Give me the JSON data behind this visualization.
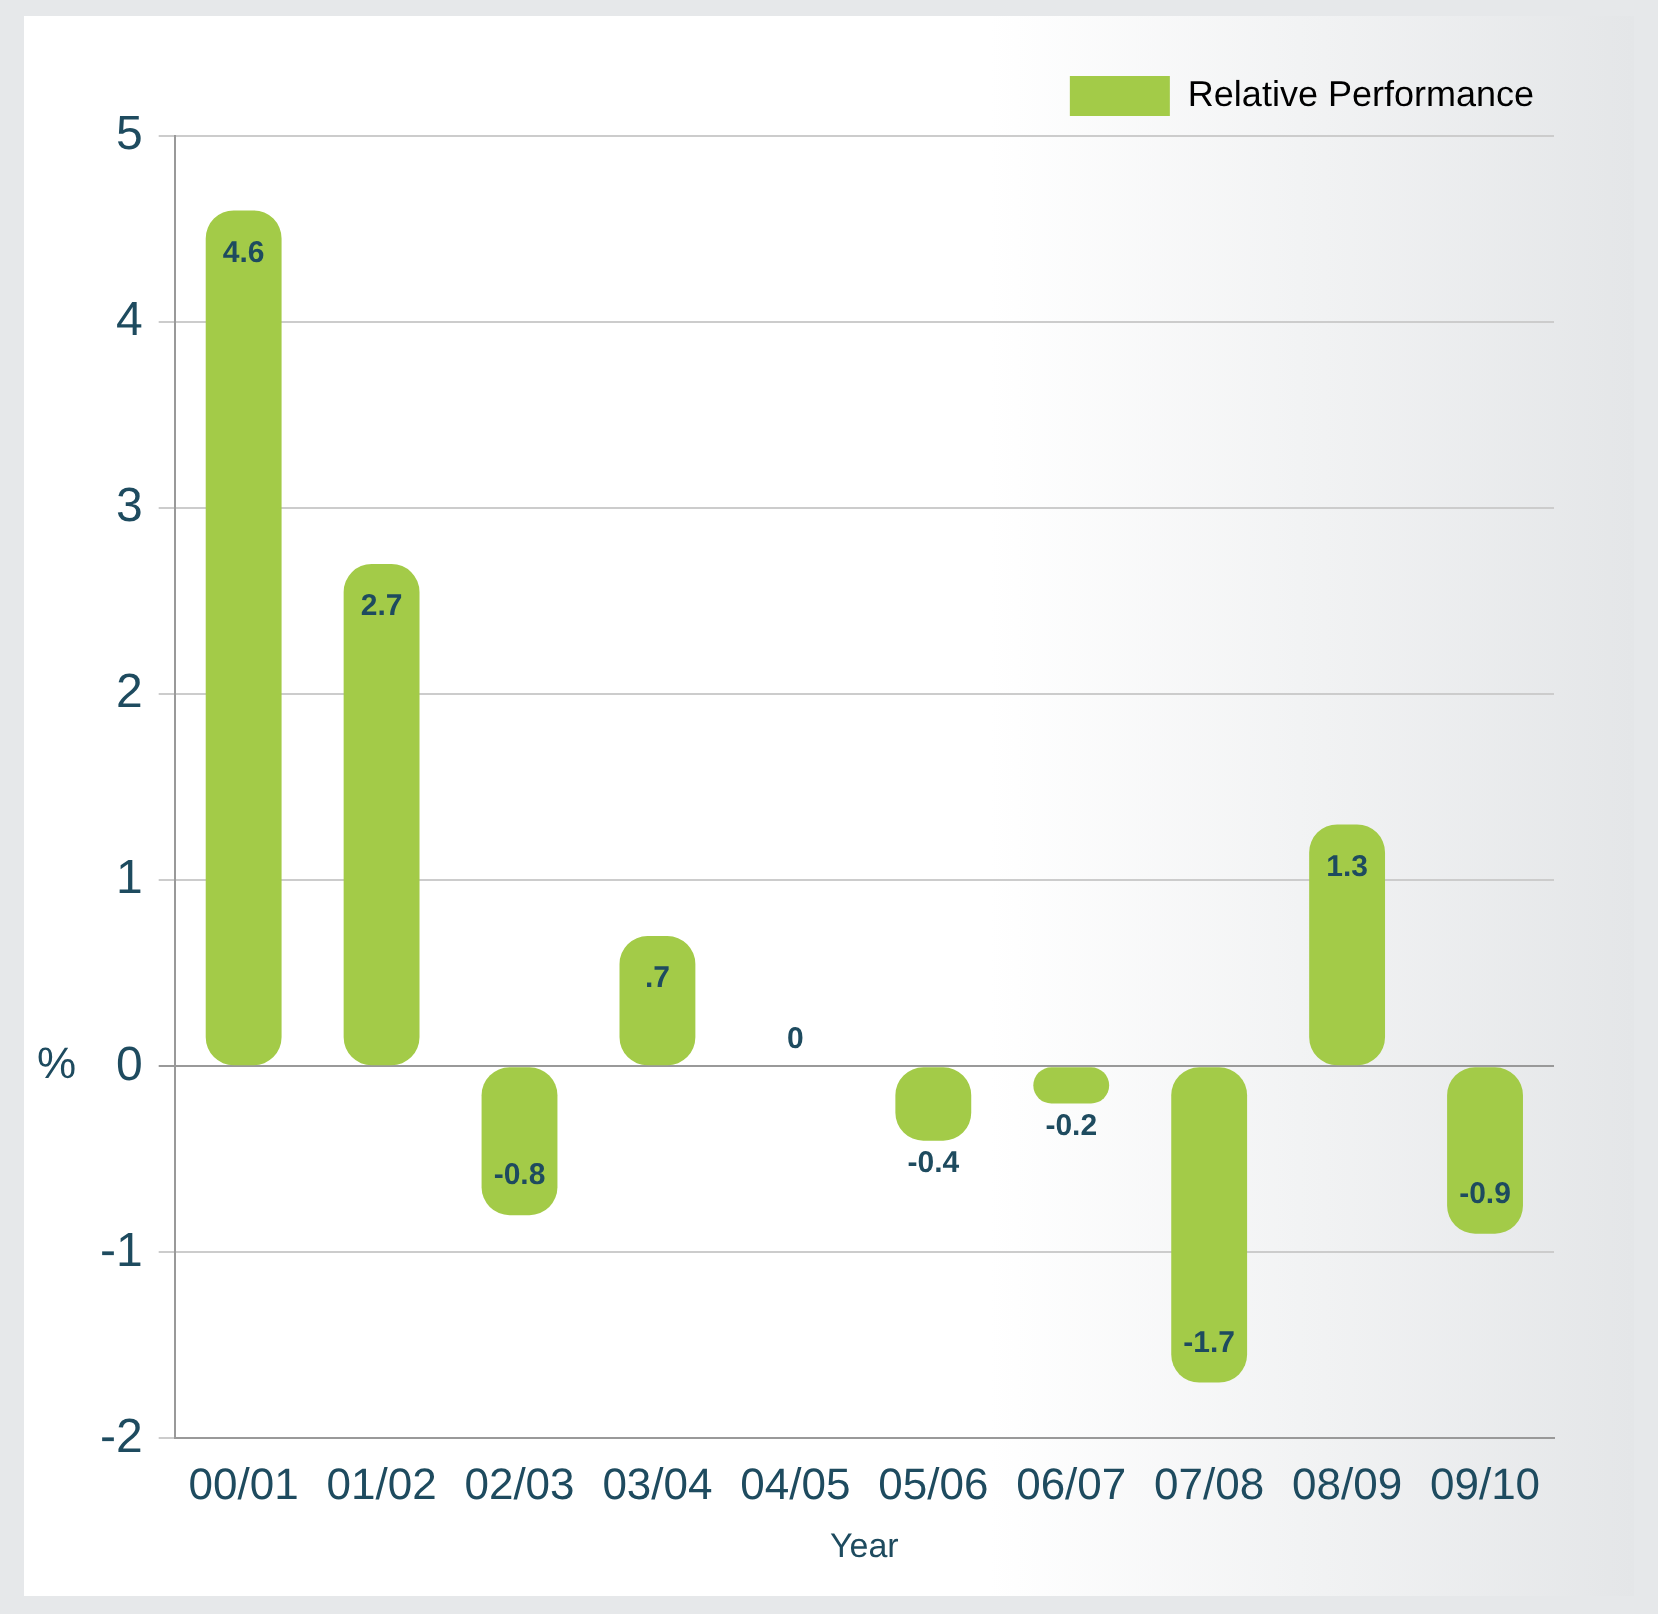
{
  "chart_data": {
    "type": "bar",
    "xlabel": "Year",
    "ylabel": "%",
    "categories": [
      "00/01",
      "01/02",
      "02/03",
      "03/04",
      "04/05",
      "05/06",
      "06/07",
      "07/08",
      "08/09",
      "09/10"
    ],
    "series": [
      {
        "name": "Relative Performance",
        "color": "#a3cb48",
        "values": [
          4.6,
          2.7,
          -0.8,
          0.7,
          0,
          -0.4,
          -0.2,
          -1.7,
          1.3,
          -0.9
        ],
        "value_labels": [
          "4.6",
          "2.7",
          "-0.8",
          ".7",
          "0",
          "-0.4",
          "-0.2",
          "-1.7",
          "1.3",
          "-0.9"
        ]
      }
    ],
    "ylim": [
      -2,
      5
    ],
    "yticks": [
      -2,
      -1,
      0,
      1,
      2,
      3,
      4,
      5
    ],
    "grid": "y",
    "legend": "top right"
  }
}
